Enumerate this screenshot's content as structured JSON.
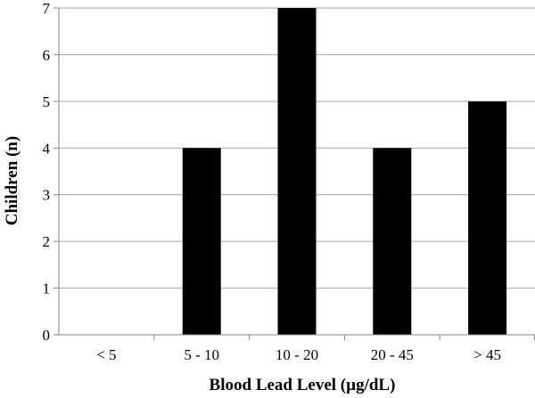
{
  "chart_data": {
    "type": "bar",
    "title": "",
    "xlabel": "Blood Lead Level (µg/dL)",
    "ylabel": "Children (n)",
    "categories": [
      "< 5",
      "5 - 10",
      "10 - 20",
      "20 - 45",
      "> 45"
    ],
    "values": [
      0,
      4,
      7,
      4,
      5
    ],
    "ylim": [
      0,
      7
    ],
    "yticks": [
      "0",
      "1",
      "2",
      "3",
      "4",
      "5",
      "6",
      "7"
    ],
    "grid": true,
    "legend": "none",
    "bar_color": "#000000",
    "grid_color": "#a6a6a6",
    "axis_color": "#878787"
  }
}
